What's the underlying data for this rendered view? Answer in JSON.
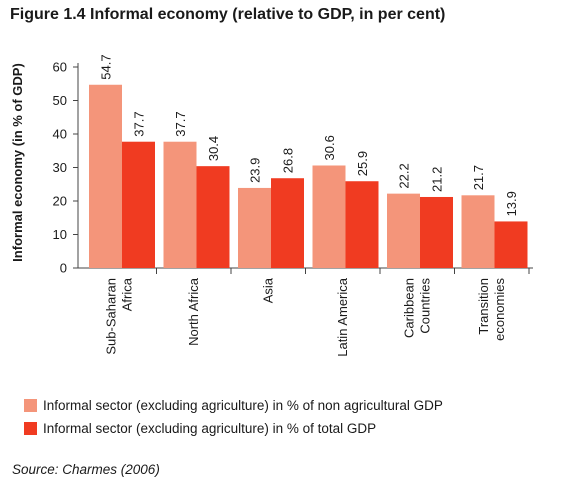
{
  "title": "Figure 1.4 Informal economy (relative to GDP, in per cent)",
  "source": "Source: Charmes (2006)",
  "colors": {
    "series1": "#f4957a",
    "series2": "#f03b21"
  },
  "chart_data": {
    "type": "bar",
    "title": "Figure 1.4 Informal economy (relative to GDP, in per cent)",
    "ylabel": "Informal economy (in % of GDP)",
    "xlabel": "",
    "ylim": [
      0,
      60
    ],
    "yticks": [
      0,
      10,
      20,
      30,
      40,
      50,
      60
    ],
    "grid": false,
    "legend_position": "bottom",
    "categories": [
      [
        "Sub-Saharan",
        "Africa"
      ],
      [
        "North Africa"
      ],
      [
        "Asia"
      ],
      [
        "Latin America"
      ],
      [
        "Caribbean",
        "Countries"
      ],
      [
        "Transition",
        "economies"
      ]
    ],
    "series": [
      {
        "name": "Informal sector (excluding agriculture) in % of non agricultural GDP",
        "values": [
          54.7,
          37.7,
          23.9,
          30.6,
          22.2,
          21.7
        ],
        "labels": [
          "54.7",
          "37.7",
          "23.9",
          "30.6",
          "22.2",
          "21.7"
        ]
      },
      {
        "name": "Informal sector (excluding agriculture) in % of total GDP",
        "values": [
          37.7,
          30.4,
          26.8,
          25.9,
          21.2,
          13.9
        ],
        "labels": [
          "37.7",
          "30.4",
          "26.8",
          "25.9",
          "21.2",
          "13.9"
        ]
      }
    ]
  }
}
